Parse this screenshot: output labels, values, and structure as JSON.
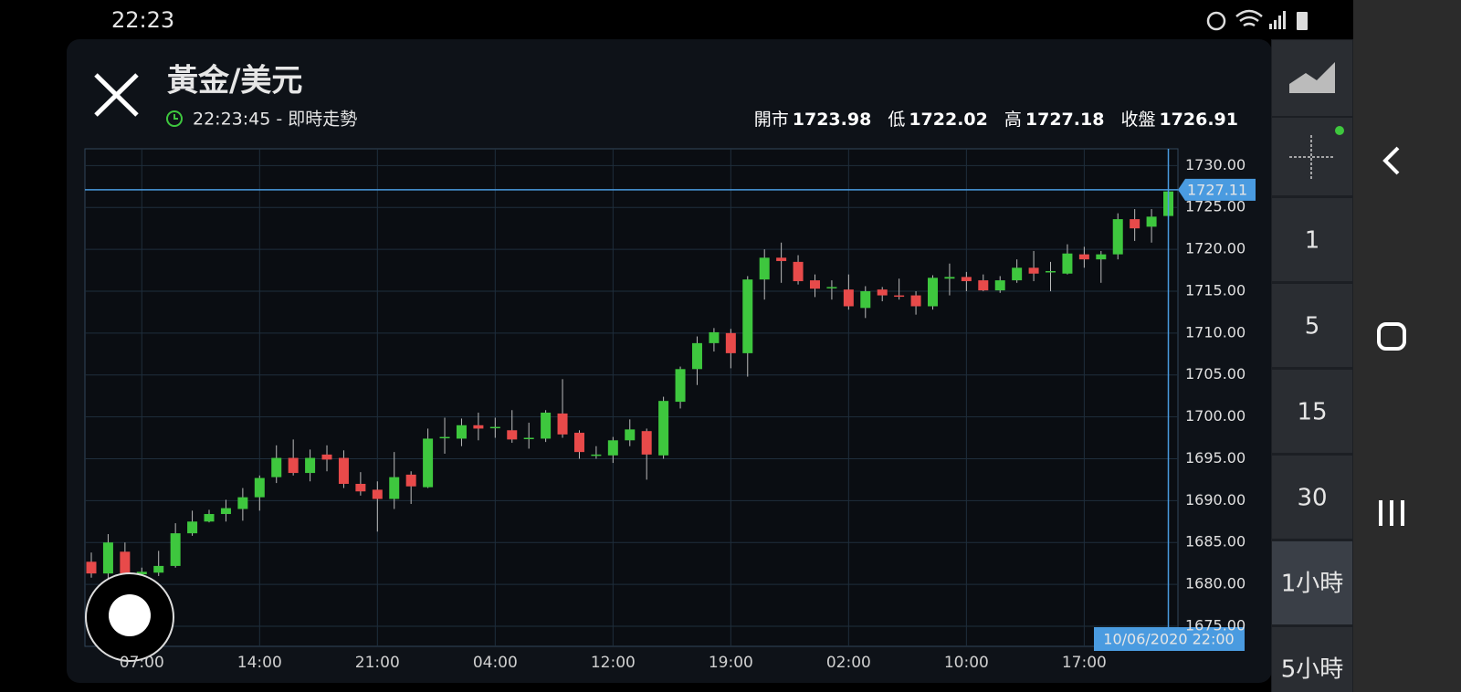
{
  "status_bar": {
    "time": "22:23"
  },
  "header": {
    "title": "黃金/美元",
    "updated": "22:23:45 - 即時走勢",
    "stats": [
      {
        "label": "開市",
        "value": 1723.98
      },
      {
        "label": "低",
        "value": 1722.02
      },
      {
        "label": "高",
        "value": 1727.18
      },
      {
        "label": "收盤",
        "value": 1726.91
      }
    ]
  },
  "intervals": [
    "1",
    "5",
    "15",
    "30",
    "1小時",
    "5小時"
  ],
  "selected_interval": 4,
  "chart_data": {
    "type": "candlestick",
    "categories": [
      null,
      null,
      null,
      "07:00",
      null,
      null,
      null,
      null,
      null,
      null,
      "14:00",
      null,
      null,
      null,
      null,
      null,
      null,
      "21:00",
      null,
      null,
      null,
      null,
      null,
      null,
      "04:00",
      null,
      null,
      null,
      null,
      null,
      null,
      "12:00",
      null,
      null,
      null,
      null,
      null,
      null,
      "19:00",
      null,
      null,
      null,
      null,
      null,
      null,
      "02:00",
      null,
      null,
      null,
      null,
      null,
      null,
      "10:00",
      null,
      null,
      null,
      null,
      null,
      null,
      "17:00",
      null,
      null,
      null,
      null,
      null
    ],
    "open": [
      1682.7,
      1681.3,
      1683.9,
      1681.2,
      1681.4,
      1682.2,
      1686.1,
      1687.5,
      1688.4,
      1689.0,
      1690.4,
      1692.8,
      1695.1,
      1693.3,
      1695.5,
      1695.1,
      1692.0,
      1691.3,
      1690.2,
      1693.1,
      1691.6,
      1697.5,
      1697.4,
      1699.0,
      1698.7,
      1698.4,
      1697.4,
      1697.4,
      1700.4,
      1698.1,
      1695.4,
      1695.4,
      1697.2,
      1698.3,
      1695.4,
      1701.8,
      1705.7,
      1708.8,
      1710.0,
      1707.6,
      1716.4,
      1719.0,
      1718.5,
      1716.3,
      1715.4,
      1715.2,
      1713.0,
      1715.2,
      1714.5,
      1714.5,
      1713.2,
      1716.5,
      1716.7,
      1716.3,
      1715.1,
      1716.3,
      1717.8,
      1717.4,
      1717.1,
      1719.4,
      1718.8,
      1719.4,
      1723.6,
      1722.7,
      1723.98
    ],
    "high": [
      1683.8,
      1686.0,
      1685.0,
      1682.0,
      1684.0,
      1687.3,
      1688.8,
      1688.9,
      1690.1,
      1691.5,
      1693.0,
      1696.6,
      1697.3,
      1696.1,
      1696.6,
      1696.0,
      1693.4,
      1692.3,
      1695.8,
      1693.5,
      1698.6,
      1699.9,
      1699.8,
      1700.5,
      1699.9,
      1700.8,
      1699.3,
      1700.8,
      1704.5,
      1698.4,
      1696.5,
      1697.6,
      1699.7,
      1698.6,
      1702.4,
      1706.0,
      1709.6,
      1710.6,
      1710.5,
      1716.8,
      1720.0,
      1720.8,
      1719.3,
      1717.0,
      1716.3,
      1717.0,
      1715.6,
      1715.5,
      1716.5,
      1715.0,
      1716.9,
      1718.3,
      1717.3,
      1717.0,
      1716.8,
      1718.8,
      1719.8,
      1718.5,
      1720.6,
      1720.3,
      1719.8,
      1724.3,
      1724.8,
      1724.8,
      1727.18
    ],
    "low": [
      1680.8,
      1680.5,
      1680.5,
      1680.5,
      1681.0,
      1682.0,
      1685.8,
      1687.4,
      1687.5,
      1687.6,
      1688.8,
      1692.1,
      1693.0,
      1692.3,
      1693.5,
      1691.5,
      1690.6,
      1686.3,
      1689.0,
      1689.6,
      1691.5,
      1695.6,
      1696.5,
      1697.2,
      1697.5,
      1696.9,
      1696.2,
      1697.0,
      1697.5,
      1695.0,
      1695.0,
      1694.5,
      1696.5,
      1692.5,
      1695.0,
      1701.0,
      1703.8,
      1707.8,
      1705.8,
      1704.8,
      1714.0,
      1716.0,
      1715.8,
      1714.3,
      1714.0,
      1712.8,
      1711.8,
      1713.8,
      1714.0,
      1712.2,
      1712.8,
      1714.5,
      1715.0,
      1715.0,
      1714.8,
      1716.0,
      1716.2,
      1715.0,
      1717.0,
      1717.8,
      1716.0,
      1718.8,
      1721.0,
      1720.8,
      1722.02
    ],
    "close": [
      1681.3,
      1685.0,
      1681.3,
      1681.5,
      1682.2,
      1686.1,
      1687.5,
      1688.4,
      1689.1,
      1690.4,
      1692.7,
      1695.1,
      1693.3,
      1695.1,
      1694.9,
      1692.0,
      1691.1,
      1690.2,
      1692.8,
      1691.7,
      1697.4,
      1697.6,
      1699.0,
      1698.6,
      1698.8,
      1697.3,
      1697.5,
      1700.5,
      1697.9,
      1695.8,
      1695.5,
      1697.2,
      1698.5,
      1695.5,
      1701.9,
      1705.7,
      1708.8,
      1710.1,
      1707.6,
      1716.4,
      1719.0,
      1718.6,
      1716.2,
      1715.3,
      1715.5,
      1713.2,
      1715.0,
      1714.5,
      1714.4,
      1713.2,
      1716.6,
      1716.7,
      1716.2,
      1715.1,
      1716.3,
      1717.8,
      1717.1,
      1717.4,
      1719.5,
      1718.8,
      1719.4,
      1723.6,
      1722.5,
      1723.9,
      1726.91
    ],
    "up_color": "#3ec73e",
    "down_color": "#e84a4a",
    "grid": true,
    "ylim": [
      1672.6,
      1732
    ],
    "yticks": [
      {
        "value": 1675,
        "label": "1675.00"
      },
      {
        "value": 1680,
        "label": "1680.00"
      },
      {
        "value": 1685,
        "label": "1685.00"
      },
      {
        "value": 1690,
        "label": "1690.00"
      },
      {
        "value": 1695,
        "label": "1695.00"
      },
      {
        "value": 1700,
        "label": "1700.00"
      },
      {
        "value": 1705,
        "label": "1705.00"
      },
      {
        "value": 1710,
        "label": "1710.00"
      },
      {
        "value": 1715,
        "label": "1715.00"
      },
      {
        "value": 1720,
        "label": "1720.00"
      },
      {
        "value": 1725,
        "label": "1725.00"
      },
      {
        "value": 1730,
        "label": "1730.00"
      }
    ],
    "crosshair": {
      "price": 1727.11,
      "time": "10/06/2020 22:00"
    }
  }
}
